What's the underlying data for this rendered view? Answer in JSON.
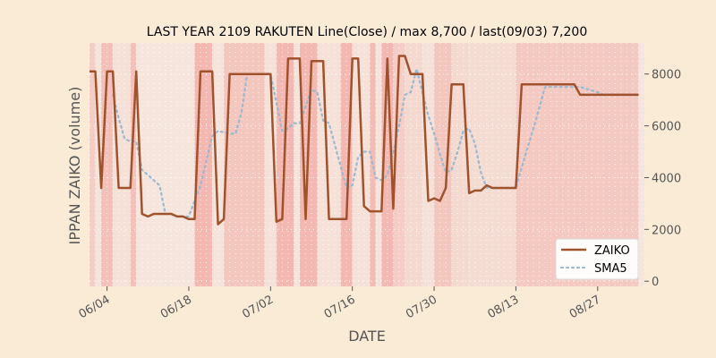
{
  "chart_data": {
    "type": "line",
    "title": "LAST YEAR 2109 RAKUTEN Line(Close) / max 8,700 / last(09/03) 7,200",
    "xlabel": "DATE",
    "ylabel": "IPPAN ZAIKO (volume)",
    "x_tick_labels": [
      "06/04",
      "06/18",
      "07/02",
      "07/16",
      "07/30",
      "08/13",
      "08/27"
    ],
    "x_tick_dates": [
      "2021-06-04",
      "2021-06-18",
      "2021-07-02",
      "2021-07-16",
      "2021-07-30",
      "2021-08-13",
      "2021-08-27"
    ],
    "x_range": [
      "2021-06-01",
      "2021-09-04"
    ],
    "y_ticks": [
      0,
      2000,
      4000,
      6000,
      8000
    ],
    "ylim": [
      -200,
      9200
    ],
    "grid": true,
    "legend_position": "lower-right",
    "series": [
      {
        "name": "ZAIKO",
        "color": "#a0522d",
        "style": "solid",
        "points": [
          [
            "2021-06-01",
            8100
          ],
          [
            "2021-06-02",
            8100
          ],
          [
            "2021-06-03",
            3600
          ],
          [
            "2021-06-04",
            8100
          ],
          [
            "2021-06-05",
            8100
          ],
          [
            "2021-06-06",
            3600
          ],
          [
            "2021-06-07",
            3600
          ],
          [
            "2021-06-08",
            3600
          ],
          [
            "2021-06-09",
            8100
          ],
          [
            "2021-06-10",
            2600
          ],
          [
            "2021-06-11",
            2500
          ],
          [
            "2021-06-12",
            2600
          ],
          [
            "2021-06-13",
            2600
          ],
          [
            "2021-06-14",
            2600
          ],
          [
            "2021-06-15",
            2600
          ],
          [
            "2021-06-16",
            2500
          ],
          [
            "2021-06-17",
            2500
          ],
          [
            "2021-06-18",
            2400
          ],
          [
            "2021-06-19",
            2400
          ],
          [
            "2021-06-20",
            8100
          ],
          [
            "2021-06-21",
            8100
          ],
          [
            "2021-06-22",
            8100
          ],
          [
            "2021-06-23",
            2200
          ],
          [
            "2021-06-24",
            2400
          ],
          [
            "2021-06-25",
            8000
          ],
          [
            "2021-07-02",
            8000
          ],
          [
            "2021-07-03",
            2300
          ],
          [
            "2021-07-04",
            2400
          ],
          [
            "2021-07-05",
            8600
          ],
          [
            "2021-07-06",
            8600
          ],
          [
            "2021-07-07",
            8600
          ],
          [
            "2021-07-08",
            2400
          ],
          [
            "2021-07-09",
            8500
          ],
          [
            "2021-07-10",
            8500
          ],
          [
            "2021-07-11",
            8500
          ],
          [
            "2021-07-12",
            2400
          ],
          [
            "2021-07-15",
            2400
          ],
          [
            "2021-07-16",
            8600
          ],
          [
            "2021-07-17",
            8600
          ],
          [
            "2021-07-18",
            2900
          ],
          [
            "2021-07-19",
            2700
          ],
          [
            "2021-07-21",
            2700
          ],
          [
            "2021-07-22",
            8600
          ],
          [
            "2021-07-23",
            2800
          ],
          [
            "2021-07-24",
            8700
          ],
          [
            "2021-07-25",
            8700
          ],
          [
            "2021-07-26",
            8000
          ],
          [
            "2021-07-28",
            8000
          ],
          [
            "2021-07-29",
            3100
          ],
          [
            "2021-07-30",
            3200
          ],
          [
            "2021-07-31",
            3100
          ],
          [
            "2021-08-01",
            3600
          ],
          [
            "2021-08-02",
            7600
          ],
          [
            "2021-08-04",
            7600
          ],
          [
            "2021-08-05",
            3400
          ],
          [
            "2021-08-06",
            3500
          ],
          [
            "2021-08-07",
            3500
          ],
          [
            "2021-08-08",
            3700
          ],
          [
            "2021-08-09",
            3600
          ],
          [
            "2021-08-13",
            3600
          ],
          [
            "2021-08-14",
            7600
          ],
          [
            "2021-08-23",
            7600
          ],
          [
            "2021-08-24",
            7200
          ],
          [
            "2021-09-03",
            7200
          ]
        ]
      },
      {
        "name": "SMA5",
        "color": "#9ab8d2",
        "style": "dotted",
        "points": [
          [
            "2021-06-05",
            7200
          ],
          [
            "2021-06-06",
            6300
          ],
          [
            "2021-06-07",
            5500
          ],
          [
            "2021-06-08",
            5400
          ],
          [
            "2021-06-09",
            5400
          ],
          [
            "2021-06-10",
            4300
          ],
          [
            "2021-06-11",
            4100
          ],
          [
            "2021-06-12",
            3900
          ],
          [
            "2021-06-13",
            3700
          ],
          [
            "2021-06-14",
            2600
          ],
          [
            "2021-06-15",
            2600
          ],
          [
            "2021-06-16",
            2500
          ],
          [
            "2021-06-17",
            2500
          ],
          [
            "2021-06-18",
            2500
          ],
          [
            "2021-06-20",
            3700
          ],
          [
            "2021-06-22",
            5600
          ],
          [
            "2021-06-23",
            5800
          ],
          [
            "2021-06-25",
            5700
          ],
          [
            "2021-06-26",
            5700
          ],
          [
            "2021-06-27",
            6500
          ],
          [
            "2021-06-28",
            8000
          ],
          [
            "2021-07-02",
            8000
          ],
          [
            "2021-07-04",
            5800
          ],
          [
            "2021-07-05",
            5900
          ],
          [
            "2021-07-06",
            6100
          ],
          [
            "2021-07-07",
            6100
          ],
          [
            "2021-07-09",
            7400
          ],
          [
            "2021-07-10",
            7300
          ],
          [
            "2021-07-11",
            6200
          ],
          [
            "2021-07-12",
            6100
          ],
          [
            "2021-07-15",
            3600
          ],
          [
            "2021-07-16",
            3700
          ],
          [
            "2021-07-17",
            4800
          ],
          [
            "2021-07-18",
            5000
          ],
          [
            "2021-07-19",
            5000
          ],
          [
            "2021-07-20",
            4000
          ],
          [
            "2021-07-21",
            3900
          ],
          [
            "2021-07-22",
            4100
          ],
          [
            "2021-07-23",
            5000
          ],
          [
            "2021-07-24",
            6000
          ],
          [
            "2021-07-25",
            7200
          ],
          [
            "2021-07-26",
            7300
          ],
          [
            "2021-07-27",
            8200
          ],
          [
            "2021-07-28",
            7300
          ],
          [
            "2021-07-29",
            6400
          ],
          [
            "2021-07-30",
            5700
          ],
          [
            "2021-07-31",
            4900
          ],
          [
            "2021-08-01",
            4200
          ],
          [
            "2021-08-02",
            4300
          ],
          [
            "2021-08-03",
            5000
          ],
          [
            "2021-08-04",
            5800
          ],
          [
            "2021-08-05",
            5900
          ],
          [
            "2021-08-06",
            5300
          ],
          [
            "2021-08-07",
            4200
          ],
          [
            "2021-08-08",
            3600
          ],
          [
            "2021-08-09",
            3600
          ],
          [
            "2021-08-13",
            3600
          ],
          [
            "2021-08-14",
            4400
          ],
          [
            "2021-08-16",
            5900
          ],
          [
            "2021-08-18",
            7500
          ],
          [
            "2021-08-23",
            7500
          ],
          [
            "2021-08-24",
            7500
          ],
          [
            "2021-08-27",
            7300
          ],
          [
            "2021-08-28",
            7200
          ],
          [
            "2021-09-03",
            7200
          ]
        ]
      }
    ],
    "background_bands": {
      "description_colors": {
        "low": "#f5e9e0",
        "high": "#f2b3ac"
      },
      "segments": [
        [
          "2021-06-01",
          "2021-06-02",
          0.5
        ],
        [
          "2021-06-02",
          "2021-06-03",
          0.1
        ],
        [
          "2021-06-03",
          "2021-06-05",
          0.75
        ],
        [
          "2021-06-05",
          "2021-06-08",
          0.15
        ],
        [
          "2021-06-08",
          "2021-06-09",
          0.75
        ],
        [
          "2021-06-09",
          "2021-06-19",
          0.08
        ],
        [
          "2021-06-19",
          "2021-06-22",
          0.9
        ],
        [
          "2021-06-22",
          "2021-06-24",
          0.1
        ],
        [
          "2021-06-24",
          "2021-07-01",
          0.65
        ],
        [
          "2021-07-01",
          "2021-07-03",
          0.15
        ],
        [
          "2021-07-03",
          "2021-07-06",
          0.9
        ],
        [
          "2021-07-06",
          "2021-07-07",
          0.1
        ],
        [
          "2021-07-07",
          "2021-07-10",
          0.9
        ],
        [
          "2021-07-10",
          "2021-07-14",
          0.15
        ],
        [
          "2021-07-14",
          "2021-07-16",
          0.9
        ],
        [
          "2021-07-16",
          "2021-07-19",
          0.15
        ],
        [
          "2021-07-19",
          "2021-07-20",
          0.85
        ],
        [
          "2021-07-20",
          "2021-07-21",
          0.1
        ],
        [
          "2021-07-21",
          "2021-07-23",
          0.9
        ],
        [
          "2021-07-23",
          "2021-07-25",
          0.5
        ],
        [
          "2021-07-25",
          "2021-07-28",
          0.3
        ],
        [
          "2021-07-28",
          "2021-07-30",
          0.15
        ],
        [
          "2021-07-30",
          "2021-08-02",
          0.65
        ],
        [
          "2021-08-02",
          "2021-08-05",
          0.3
        ],
        [
          "2021-08-05",
          "2021-08-13",
          0.25
        ],
        [
          "2021-08-13",
          "2021-09-03",
          0.6
        ],
        [
          "2021-09-03",
          "2021-09-04",
          0.05
        ]
      ]
    },
    "legend": [
      {
        "label": "ZAIKO",
        "color": "#a0522d",
        "style": "solid"
      },
      {
        "label": "SMA5",
        "color": "#9ab8d2",
        "style": "dotted"
      }
    ]
  }
}
